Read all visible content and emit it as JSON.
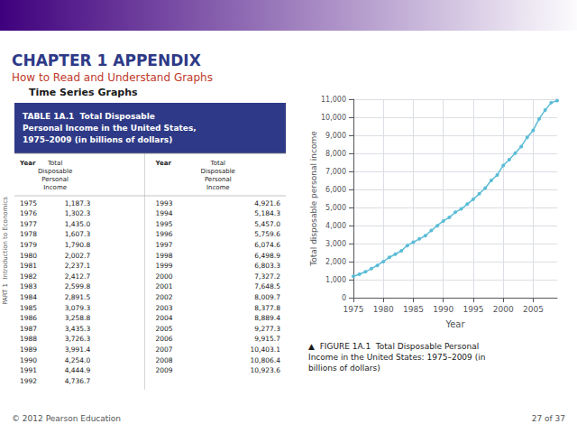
{
  "chart_data": {
    "type": "line",
    "title": "CHAPTER 1 APPENDIX",
    "subtitle": "How to Read and Understand Graphs",
    "section": "Time Series Graphs",
    "part_label": "PART 1  Introduction to Economics",
    "caption": "▲  FIGURE 1A.1  Total Disposable Personal\nIncome in the United States: 1975–2009 (in\nbillions of dollars)",
    "footer": "© 2012 Pearson Education",
    "page": "27 of 37",
    "xlabel": "Year",
    "ylabel": "Total disposable personal income",
    "x": [
      1975,
      1976,
      1977,
      1978,
      1979,
      1980,
      1981,
      1982,
      1983,
      1984,
      1985,
      1986,
      1987,
      1988,
      1989,
      1990,
      1991,
      1992,
      1993,
      1994,
      1995,
      1996,
      1997,
      1998,
      1999,
      2000,
      2001,
      2002,
      2003,
      2004,
      2005,
      2006,
      2007,
      2008,
      2009
    ],
    "values": [
      1187.3,
      1302.3,
      1435.0,
      1607.3,
      1790.8,
      2002.7,
      2237.1,
      2412.7,
      2599.8,
      2891.5,
      3079.3,
      3258.8,
      3435.3,
      3726.3,
      3991.4,
      4254.0,
      4444.9,
      4736.7,
      4921.6,
      5184.3,
      5457.0,
      5759.6,
      6074.6,
      6498.9,
      6803.3,
      7327.2,
      7648.5,
      8009.7,
      8377.8,
      8889.4,
      9277.3,
      9915.7,
      10403.1,
      10806.4,
      10923.6
    ],
    "xlim": [
      1975,
      2009
    ],
    "ylim": [
      0,
      11000
    ],
    "xticks": [
      1975,
      1980,
      1985,
      1990,
      1995,
      2000,
      2005
    ],
    "yticks": [
      0,
      {
        "value": 1000,
        "label": "1,000"
      },
      {
        "value": 2000,
        "label": "2,000"
      },
      {
        "value": 3000,
        "label": "3,000"
      },
      {
        "value": 4000,
        "label": "4,000"
      },
      {
        "value": 5000,
        "label": "5,000"
      },
      {
        "value": 6000,
        "label": "6,000"
      },
      {
        "value": 7000,
        "label": "7,000"
      },
      {
        "value": 8000,
        "label": "8,000"
      },
      {
        "value": 9000,
        "label": "9,000"
      },
      {
        "value": 10000,
        "label": "10,000"
      },
      {
        "value": 11000,
        "label": "11,000"
      }
    ],
    "grid": true,
    "color": "#5bbcd6",
    "marker": "circle",
    "table": {
      "title": "TABLE 1A.1  Total Disposable\nPersonal Income in the United States,\n1975–2009 (in billions of dollars)",
      "header": [
        "Year",
        "Total\nDisposable\nPersonal\nIncome"
      ],
      "columns": [
        [
          [
            "1975",
            "1,187.3"
          ],
          [
            "1976",
            "1,302.3"
          ],
          [
            "1977",
            "1,435.0"
          ],
          [
            "1978",
            "1,607.3"
          ],
          [
            "1979",
            "1,790.8"
          ],
          [
            "1980",
            "2,002.7"
          ],
          [
            "1981",
            "2,237.1"
          ],
          [
            "1982",
            "2,412.7"
          ],
          [
            "1983",
            "2,599.8"
          ],
          [
            "1984",
            "2,891.5"
          ],
          [
            "1985",
            "3,079.3"
          ],
          [
            "1986",
            "3,258.8"
          ],
          [
            "1987",
            "3,435.3"
          ],
          [
            "1988",
            "3,726.3"
          ],
          [
            "1989",
            "3,991.4"
          ],
          [
            "1990",
            "4,254.0"
          ],
          [
            "1991",
            "4,444.9"
          ],
          [
            "1992",
            "4,736.7"
          ]
        ],
        [
          [
            "1993",
            "4,921.6"
          ],
          [
            "1994",
            "5,184.3"
          ],
          [
            "1995",
            "5,457.0"
          ],
          [
            "1996",
            "5,759.6"
          ],
          [
            "1997",
            "6,074.6"
          ],
          [
            "1998",
            "6,498.9"
          ],
          [
            "1999",
            "6,803.3"
          ],
          [
            "2000",
            "7,327.2"
          ],
          [
            "2001",
            "7,648.5"
          ],
          [
            "2002",
            "8,009.7"
          ],
          [
            "2003",
            "8,377.8"
          ],
          [
            "2004",
            "8,889.4"
          ],
          [
            "2005",
            "9,277.3"
          ],
          [
            "2006",
            "9,915.7"
          ],
          [
            "2007",
            "10,403.1"
          ],
          [
            "2008",
            "10,806.4"
          ],
          [
            "2009",
            "10,923.6"
          ]
        ]
      ]
    }
  }
}
